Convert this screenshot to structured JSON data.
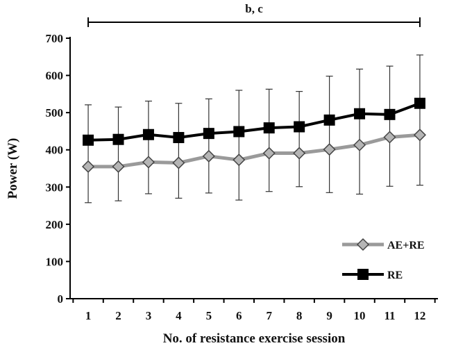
{
  "chart_data": {
    "type": "line",
    "xlabel": "No. of resistance exercise session",
    "ylabel": "Power (W)",
    "x": [
      1,
      2,
      3,
      4,
      5,
      6,
      7,
      8,
      9,
      10,
      11,
      12
    ],
    "ylim": [
      0,
      700
    ],
    "yticks": [
      0,
      100,
      200,
      300,
      400,
      500,
      600,
      700
    ],
    "grid": false,
    "legend_position": "bottom-right",
    "annotation": {
      "text": "b, c",
      "x_start": 1,
      "x_end": 12,
      "y": 743
    },
    "series": [
      {
        "name": "AE+RE",
        "color": "#9a9a9a",
        "marker": "diamond",
        "values": [
          355,
          355,
          367,
          365,
          383,
          373,
          391,
          391,
          401,
          413,
          434,
          440
        ],
        "error_lower": [
          258,
          263,
          282,
          270,
          284,
          265,
          288,
          301,
          285,
          281,
          302,
          305
        ],
        "error_upper": [
          521,
          515,
          531,
          525,
          537,
          560,
          563,
          557,
          598,
          617,
          625,
          655
        ]
      },
      {
        "name": "RE",
        "color": "#000000",
        "marker": "square",
        "values": [
          426,
          428,
          441,
          433,
          444,
          449,
          459,
          462,
          480,
          497,
          495,
          525
        ]
      }
    ]
  }
}
